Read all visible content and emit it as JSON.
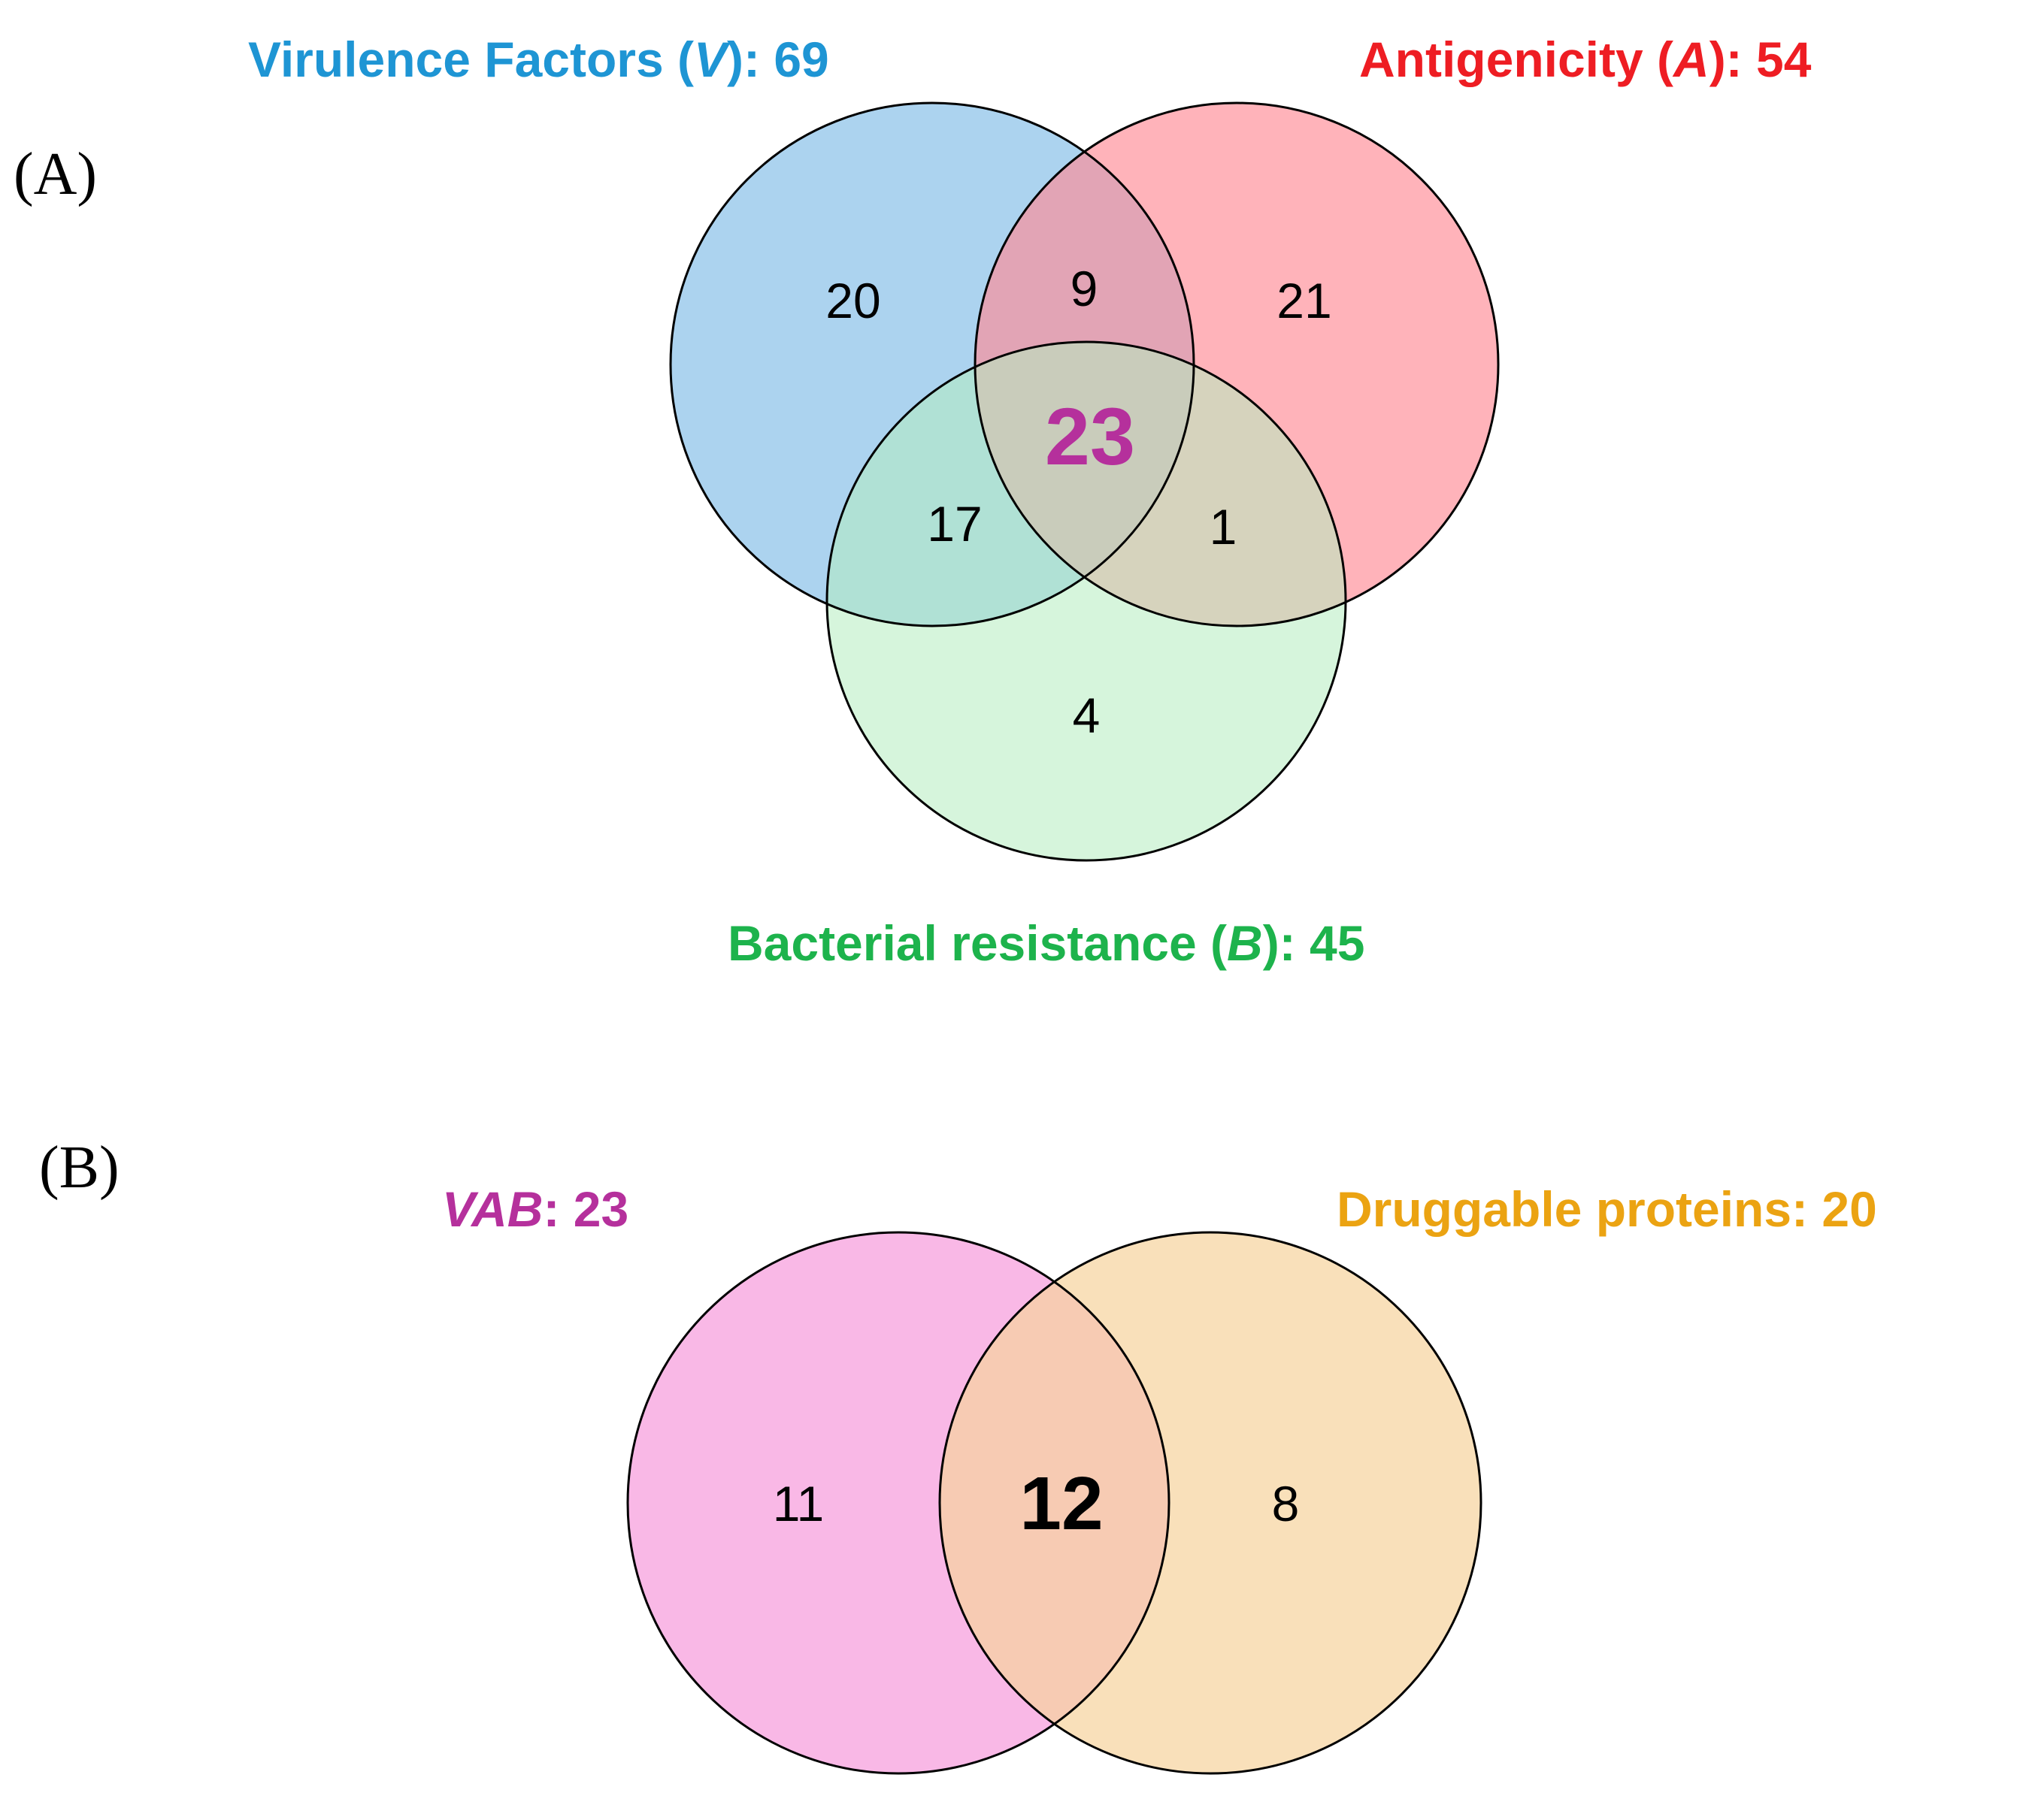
{
  "panel_a": {
    "label": "(A)",
    "sets": {
      "v": {
        "prefix": "Virulence Factors (",
        "letter": "V",
        "suffix": "): 69",
        "color": "#1e95d4",
        "fill": "#9ecbec"
      },
      "a": {
        "prefix": "Antigenicity (",
        "letter": "A",
        "suffix": "): 54",
        "color": "#ee1d23",
        "fill": "#ff8a95"
      },
      "b": {
        "prefix": "Bacterial resistance (",
        "letter": "B",
        "suffix": "): 45",
        "color": "#1db34c",
        "fill": "#b4ecbf"
      }
    },
    "regions": {
      "v_only": "20",
      "v_a": "9",
      "a_only": "21",
      "v_a_b": "23",
      "v_b": "17",
      "a_b": "1",
      "b_only": "4"
    },
    "center_color": "#b5309c"
  },
  "panel_b": {
    "label": "(B)",
    "sets": {
      "vab": {
        "letters": "VAB",
        "suffix": ": 23",
        "color": "#b5309c",
        "fill": "#f9b8e6"
      },
      "drug": {
        "text": "Druggable proteins: 20",
        "color": "#eba312",
        "fill": "#f7d39c"
      }
    },
    "regions": {
      "vab_only": "11",
      "both": "12",
      "drug_only": "8"
    }
  }
}
